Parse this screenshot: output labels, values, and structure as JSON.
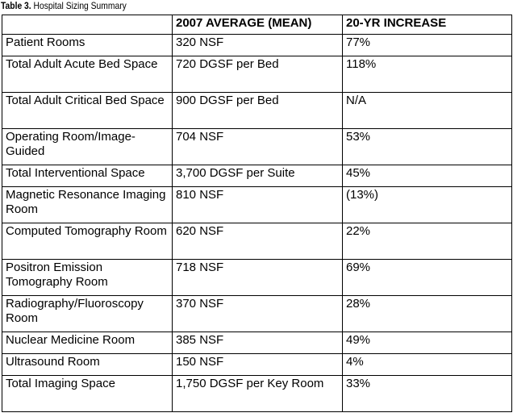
{
  "caption": {
    "label": "Table 3.",
    "title": "Hospital Sizing Summary"
  },
  "table": {
    "headers": [
      "",
      "2007 AVERAGE (MEAN)",
      "20-YR INCREASE"
    ],
    "rows": [
      [
        "Patient Rooms",
        "320 NSF",
        "77%"
      ],
      [
        "Total Adult Acute Bed Space",
        "720 DGSF per Bed",
        "118%"
      ],
      [
        "Total Adult Critical Bed Space",
        "900 DGSF per Bed",
        "N/A"
      ],
      [
        "Operating Room/Image-Guided",
        "704 NSF",
        "53%"
      ],
      [
        "Total Interventional Space",
        "3,700 DGSF per Suite",
        "45%"
      ],
      [
        "Magnetic Resonance Imaging Room",
        "810 NSF",
        "(13%)"
      ],
      [
        "Computed Tomography Room",
        "620 NSF",
        "22%"
      ],
      [
        "Positron Emission Tomography Room",
        "718 NSF",
        "69%"
      ],
      [
        "Radiography/Fluoroscopy Room",
        "370 NSF",
        "28%"
      ],
      [
        "Nuclear Medicine Room",
        "385 NSF",
        "49%"
      ],
      [
        "Ultrasound Room",
        "150 NSF",
        "4%"
      ],
      [
        "Total Imaging Space",
        "1,750 DGSF per Key Room",
        "33%"
      ]
    ]
  }
}
